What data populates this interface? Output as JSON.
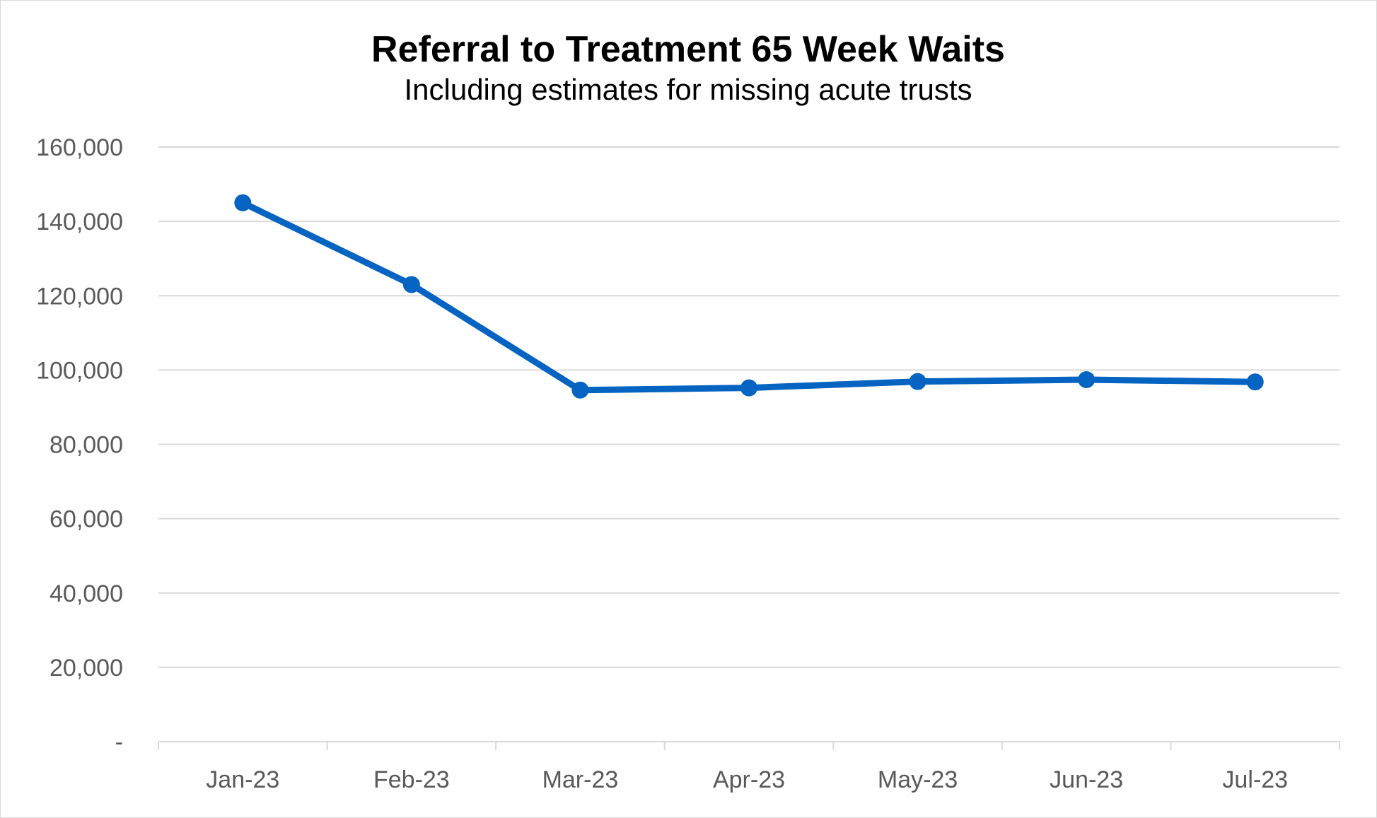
{
  "chart_data": {
    "type": "line",
    "title": "Referral to Treatment 65 Week Waits",
    "subtitle": "Including estimates for missing acute trusts",
    "xlabel": "",
    "ylabel": "",
    "categories": [
      "Jan-23",
      "Feb-23",
      "Mar-23",
      "Apr-23",
      "May-23",
      "Jun-23",
      "Jul-23"
    ],
    "series": [
      {
        "values": [
          145000,
          123000,
          94600,
          95200,
          96900,
          97400,
          96800
        ],
        "color": "#0563C1"
      }
    ],
    "ylim": [
      0,
      160000
    ],
    "yticks": [
      0,
      20000,
      40000,
      60000,
      80000,
      100000,
      120000,
      140000,
      160000
    ],
    "ytick_labels": [
      "-",
      "20,000",
      "40,000",
      "60,000",
      "80,000",
      "100,000",
      "120,000",
      "140,000",
      "160,000"
    ],
    "grid": true,
    "gridline_color": "#d9d9d9",
    "legend": "none"
  }
}
